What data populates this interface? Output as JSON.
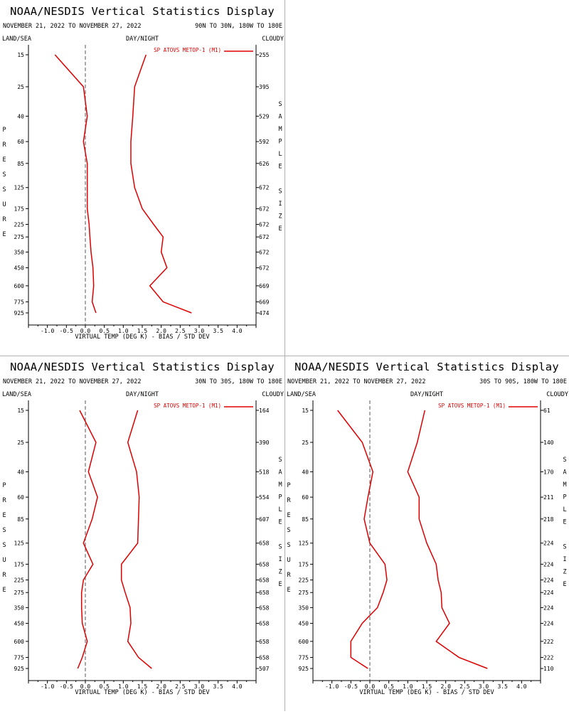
{
  "page": {
    "title": "NOAA/NESDIS Vertical Statistics Display"
  },
  "labels": {
    "date_range": "NOVEMBER 21, 2022 TO NOVEMBER 27, 2022",
    "land_sea": "LAND/SEA",
    "day_night": "DAY/NIGHT",
    "cloudy": "CLOUDY",
    "legend": "SP ATOVS METOP-1 (M1)",
    "xlabel": "VIRTUAL TEMP (DEG K) - BIAS / STD DEV",
    "ylabel": "PRESSURE",
    "y2label": "SAMPLE SIZE"
  },
  "colors": {
    "series": "#dd0000",
    "axis": "#000000",
    "zero_line": "#555555",
    "separator": "#b0b0b0"
  },
  "chart_data": [
    {
      "type": "line",
      "title": "NOAA/NESDIS Vertical Statistics Display",
      "region": "90N TO 30N, 180W TO 180E",
      "xlabel": "VIRTUAL TEMP (DEG K) - BIAS / STD DEV",
      "ylabel": "PRESSURE",
      "xlim": [
        -1.5,
        4.5
      ],
      "xticks": [
        -1.0,
        -0.5,
        0.0,
        0.5,
        1.0,
        1.5,
        2.0,
        2.5,
        3.0,
        3.5,
        4.0
      ],
      "levels": [
        15,
        25,
        40,
        60,
        85,
        125,
        175,
        225,
        275,
        350,
        450,
        600,
        775,
        925
      ],
      "sample_size": [
        255,
        395,
        529,
        592,
        626,
        672,
        672,
        672,
        672,
        672,
        672,
        669,
        669,
        474
      ],
      "series": [
        {
          "name": "bias",
          "values": [
            -0.8,
            -0.05,
            0.05,
            -0.05,
            0.05,
            0.05,
            0.05,
            0.1,
            0.12,
            0.15,
            0.2,
            0.22,
            0.18,
            0.28
          ]
        },
        {
          "name": "std_dev",
          "values": [
            1.6,
            1.3,
            1.25,
            1.2,
            1.2,
            1.3,
            1.5,
            1.8,
            2.05,
            2.0,
            2.15,
            1.7,
            2.05,
            2.8
          ]
        }
      ]
    },
    {
      "type": "line",
      "title": "NOAA/NESDIS Vertical Statistics Display",
      "region": "30N TO 30S, 180W TO 180E",
      "xlabel": "VIRTUAL TEMP (DEG K) - BIAS / STD DEV",
      "ylabel": "PRESSURE",
      "xlim": [
        -1.5,
        4.5
      ],
      "xticks": [
        -1.0,
        -0.5,
        0.0,
        0.5,
        1.0,
        1.5,
        2.0,
        2.5,
        3.0,
        3.5,
        4.0
      ],
      "levels": [
        15,
        25,
        40,
        60,
        85,
        125,
        175,
        225,
        275,
        350,
        450,
        600,
        775,
        925
      ],
      "sample_size": [
        164,
        390,
        518,
        554,
        607,
        658,
        658,
        658,
        658,
        658,
        658,
        658,
        658,
        507
      ],
      "series": [
        {
          "name": "bias",
          "values": [
            -0.15,
            0.28,
            0.08,
            0.32,
            0.18,
            -0.05,
            0.2,
            -0.05,
            -0.1,
            -0.1,
            -0.08,
            0.05,
            -0.08,
            -0.2
          ]
        },
        {
          "name": "std_dev",
          "values": [
            1.38,
            1.12,
            1.35,
            1.42,
            1.4,
            1.38,
            0.95,
            0.95,
            1.05,
            1.18,
            1.2,
            1.12,
            1.4,
            1.75
          ]
        }
      ]
    },
    {
      "type": "line",
      "title": "NOAA/NESDIS Vertical Statistics Display",
      "region": "30S TO 90S, 180W TO 180E",
      "xlabel": "VIRTUAL TEMP (DEG K) - BIAS / STD DEV",
      "ylabel": "PRESSURE",
      "xlim": [
        -1.5,
        4.5
      ],
      "xticks": [
        -1.0,
        -0.5,
        0.0,
        0.5,
        1.0,
        1.5,
        2.0,
        2.5,
        3.0,
        3.5,
        4.0
      ],
      "levels": [
        15,
        25,
        40,
        60,
        85,
        125,
        175,
        225,
        275,
        350,
        450,
        600,
        775,
        925
      ],
      "sample_size": [
        61,
        140,
        170,
        211,
        218,
        224,
        224,
        224,
        224,
        224,
        224,
        222,
        222,
        110
      ],
      "series": [
        {
          "name": "bias",
          "values": [
            -0.85,
            -0.2,
            0.08,
            -0.05,
            -0.15,
            0.0,
            0.4,
            0.45,
            0.35,
            0.2,
            -0.2,
            -0.5,
            -0.5,
            -0.05
          ]
        },
        {
          "name": "std_dev",
          "values": [
            1.45,
            1.25,
            1.0,
            1.3,
            1.3,
            1.5,
            1.75,
            1.8,
            1.88,
            1.9,
            2.1,
            1.75,
            2.35,
            3.1
          ]
        }
      ]
    }
  ]
}
